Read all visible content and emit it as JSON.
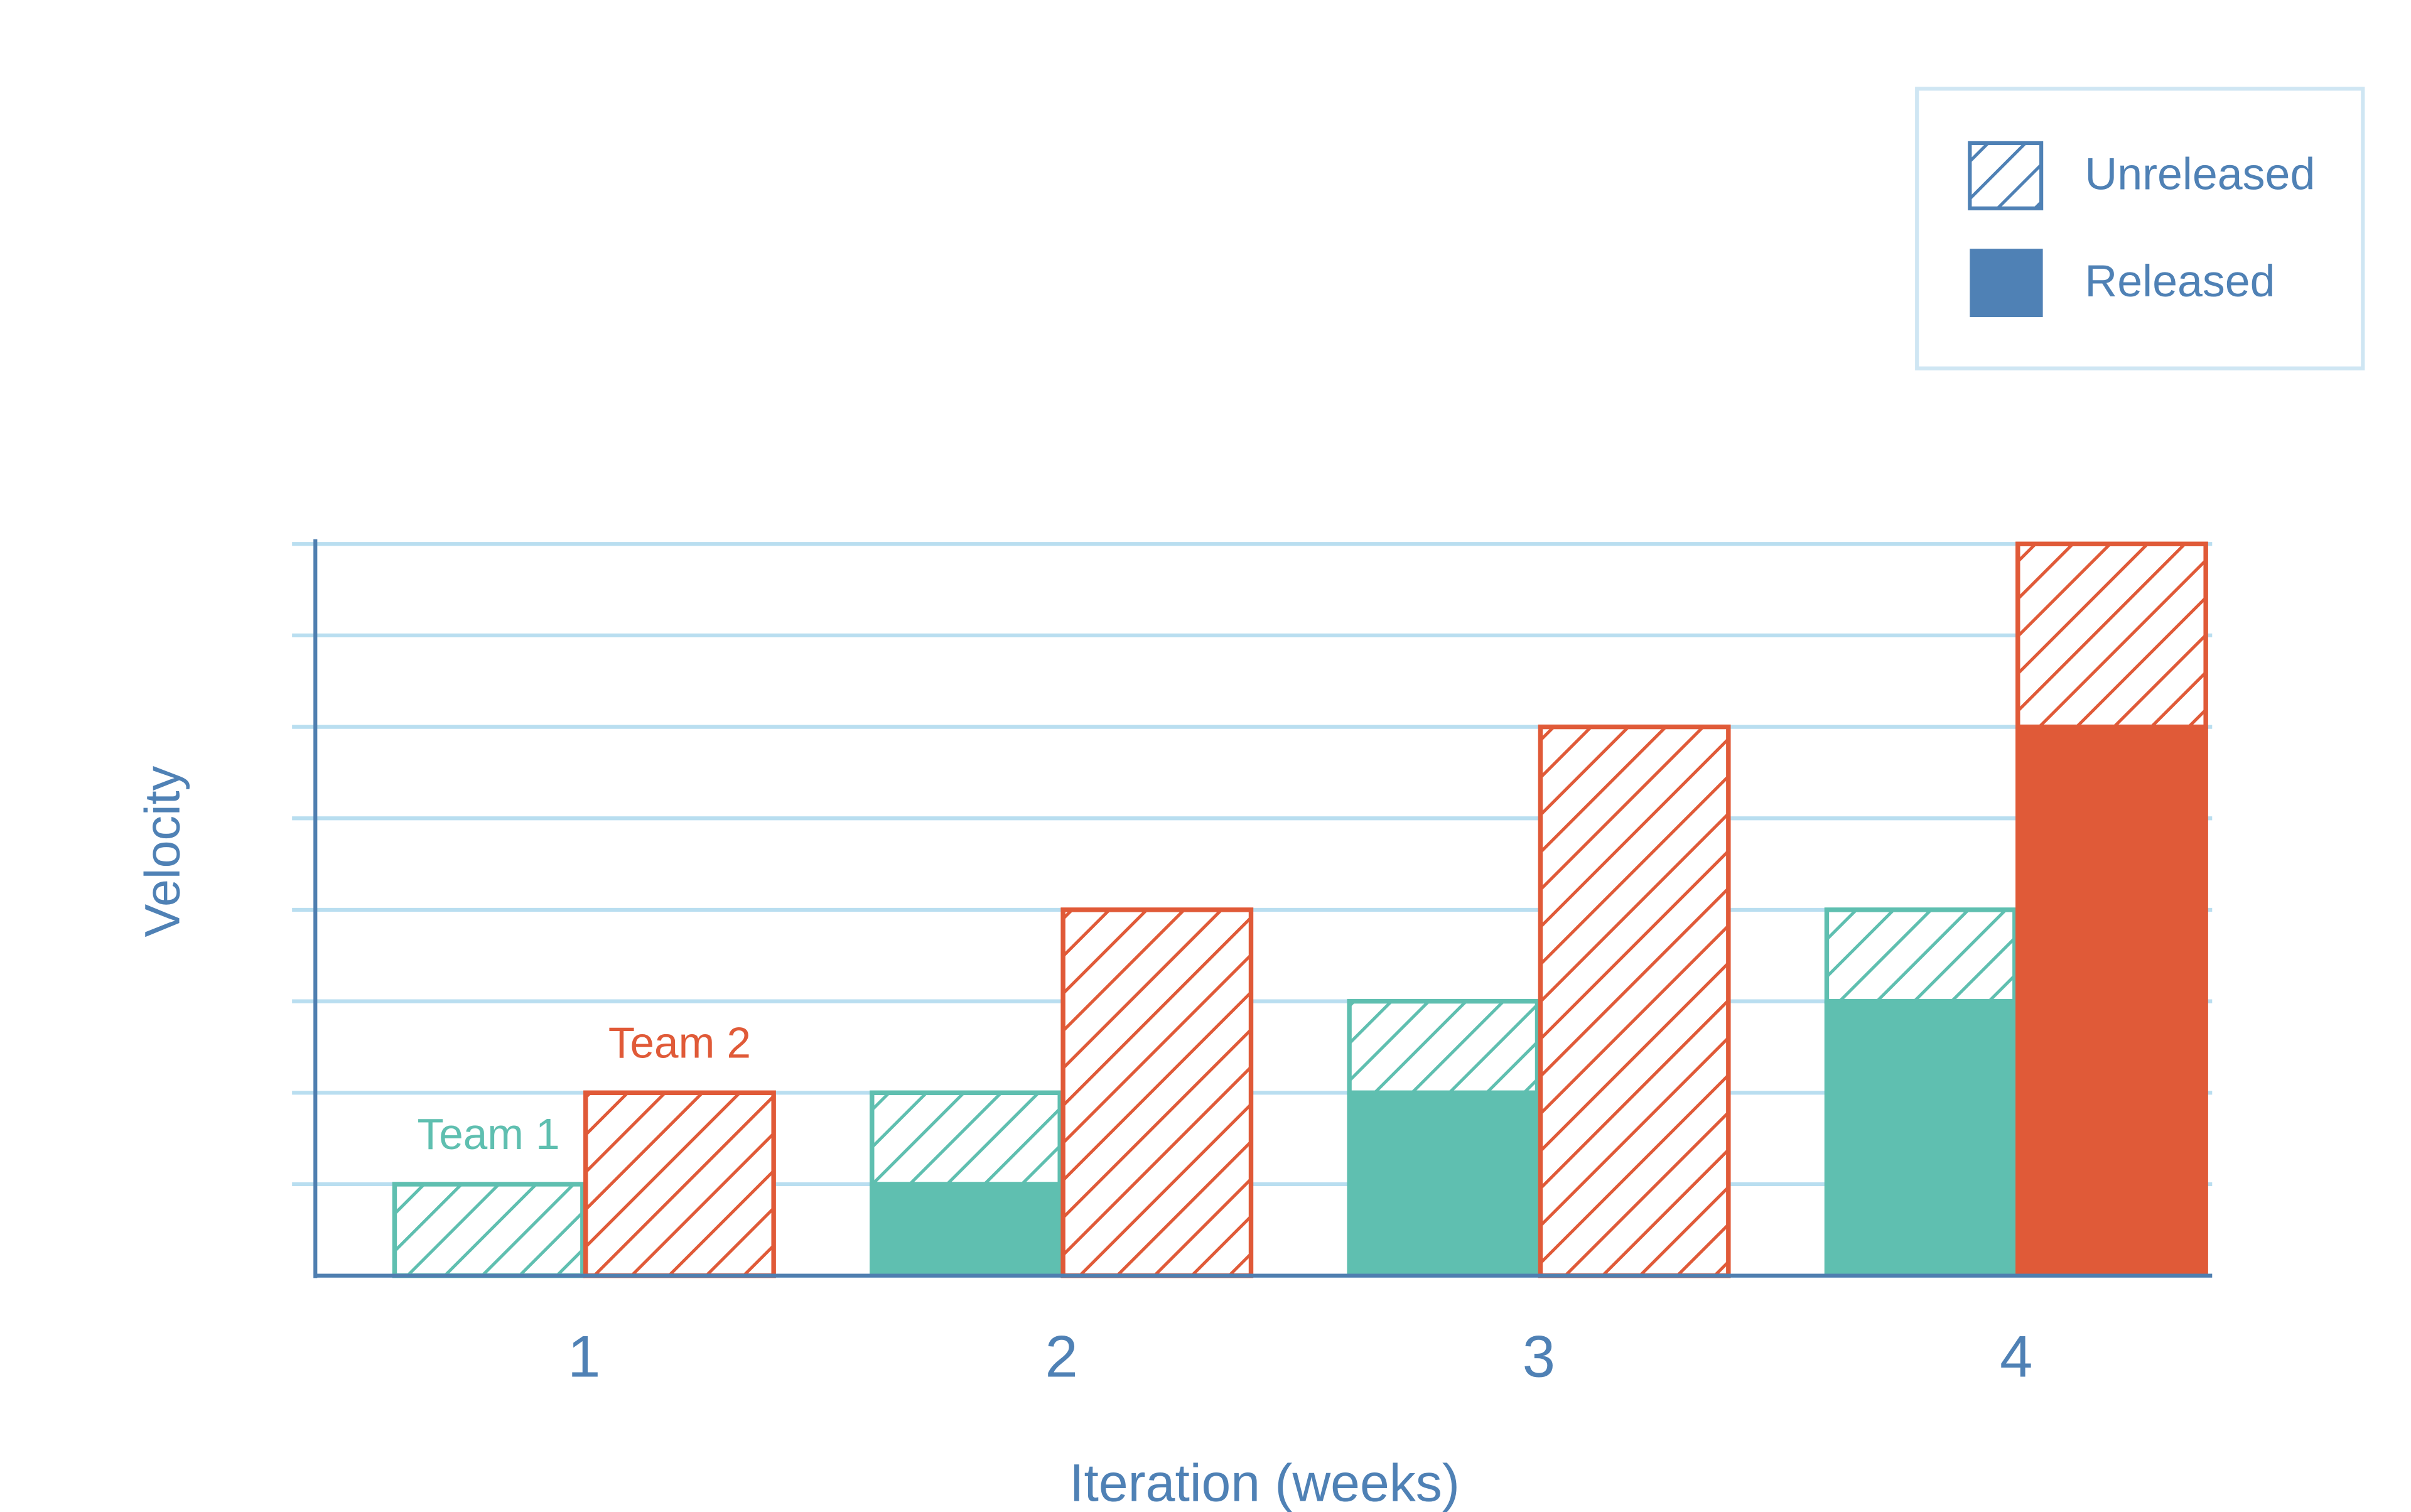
{
  "chart_data": {
    "type": "stacked_grouped_bar",
    "x_label": "Iteration (weeks)",
    "y_label": "Velocity",
    "categories": [
      "1",
      "2",
      "3",
      "4"
    ],
    "ylim": [
      0,
      8
    ],
    "yticks": [
      1,
      2,
      3,
      4,
      5,
      6,
      7,
      8
    ],
    "grid": true,
    "groups": [
      {
        "name": "Team 1",
        "color": "#5fbfb0",
        "released": [
          0,
          1,
          2,
          3
        ],
        "unreleased": [
          1,
          1,
          1,
          1
        ]
      },
      {
        "name": "Team 2",
        "color": "#e05a38",
        "released": [
          0,
          0,
          0,
          6
        ],
        "unreleased": [
          2,
          4,
          6,
          2
        ]
      }
    ],
    "legend": {
      "position": "upper right",
      "color": "#4f81b5",
      "unreleased": "Unreleased",
      "released": "Released"
    }
  }
}
